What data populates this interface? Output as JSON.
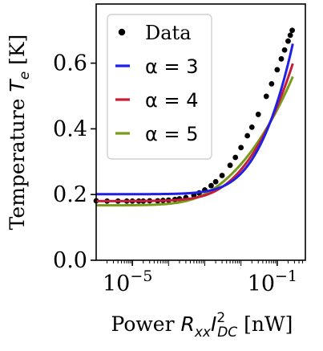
{
  "chart_data": {
    "type": "scatter",
    "title": "",
    "xlabel": {
      "prefix": "Power ",
      "var": "R",
      "sub1": "xx",
      "var2": "I",
      "sup": "2",
      "sub2": "DC",
      "suffix": " [nW]"
    },
    "ylabel": {
      "prefix": "Temperature ",
      "var": "T",
      "sub": "e",
      "suffix": " [K]"
    },
    "x_scale": "log",
    "xlim": [
      1e-06,
      0.6
    ],
    "ylim": [
      0.0,
      0.78
    ],
    "x_ticks": [
      {
        "value": 1e-05,
        "base": "10",
        "exp": "−5"
      },
      {
        "value": 0.1,
        "base": "10",
        "exp": "−1"
      }
    ],
    "y_ticks": [
      {
        "value": 0.0,
        "label": "0.0"
      },
      {
        "value": 0.2,
        "label": "0.2"
      },
      {
        "value": 0.4,
        "label": "0.4"
      },
      {
        "value": 0.6,
        "label": "0.6"
      }
    ],
    "legend_position": "top-left",
    "series": [
      {
        "name": "Data",
        "kind": "points",
        "color": "#000000",
        "x": [
          1e-06,
          2e-06,
          4e-06,
          7e-06,
          1e-05,
          1.5e-05,
          2e-05,
          3e-05,
          5e-05,
          7e-05,
          0.0001,
          0.00015,
          0.0002,
          0.0003,
          0.0005,
          0.0007,
          0.001,
          0.0015,
          0.002,
          0.003,
          0.005,
          0.007,
          0.01,
          0.015,
          0.02,
          0.03,
          0.05,
          0.07,
          0.1,
          0.13,
          0.16,
          0.2,
          0.23,
          0.26
        ],
        "y": [
          0.181,
          0.18,
          0.18,
          0.18,
          0.18,
          0.18,
          0.18,
          0.181,
          0.181,
          0.182,
          0.183,
          0.185,
          0.187,
          0.191,
          0.198,
          0.205,
          0.214,
          0.227,
          0.239,
          0.258,
          0.289,
          0.313,
          0.343,
          0.379,
          0.405,
          0.444,
          0.499,
          0.537,
          0.58,
          0.613,
          0.64,
          0.667,
          0.685,
          0.7
        ]
      },
      {
        "name": "α = 3",
        "kind": "line",
        "color": "#1f1fe6",
        "alpha": 3,
        "T0": 0.201,
        "A": 1.01
      },
      {
        "name": "α = 4",
        "kind": "line",
        "color": "#c41e3a",
        "alpha": 4,
        "T0": 0.18,
        "A": 0.829
      },
      {
        "name": "α = 5",
        "kind": "line",
        "color": "#7a9a1a",
        "alpha": 5,
        "T0": 0.167,
        "A": 0.726
      }
    ]
  }
}
